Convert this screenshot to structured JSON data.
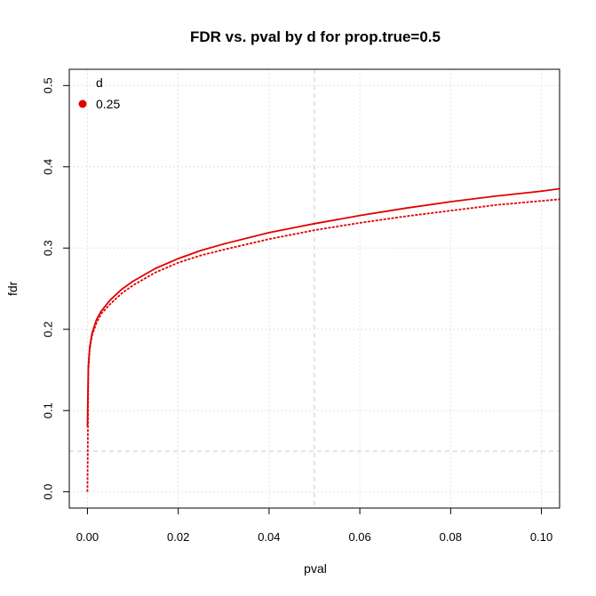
{
  "chart_data": {
    "type": "line",
    "title": "FDR vs. pval by d for prop.true=0.5",
    "xlabel": "pval",
    "ylabel": "fdr",
    "xlim": [
      -0.004,
      0.104
    ],
    "ylim": [
      -0.02,
      0.52
    ],
    "x_ticks": [
      0.0,
      0.02,
      0.04,
      0.06,
      0.08,
      0.1
    ],
    "x_tick_labels": [
      "0.00",
      "0.02",
      "0.04",
      "0.06",
      "0.08",
      "0.10"
    ],
    "y_ticks": [
      0.0,
      0.1,
      0.2,
      0.3,
      0.4,
      0.5
    ],
    "y_tick_labels": [
      "0.0",
      "0.1",
      "0.2",
      "0.3",
      "0.4",
      "0.5"
    ],
    "grid": true,
    "legend": {
      "title": "d",
      "placement": "top-left",
      "entries": [
        {
          "label": "0.25",
          "color": "#e00000"
        }
      ]
    },
    "reference_lines": {
      "vertical_x": 0.05,
      "horizontal_y": 0.05,
      "color": "#d3d3d3"
    },
    "series": [
      {
        "color": "#e00000",
        "style": "solid",
        "x": [
          0.0,
          0.0002,
          0.0005,
          0.001,
          0.002,
          0.003,
          0.005,
          0.0075,
          0.01,
          0.015,
          0.02,
          0.025,
          0.03,
          0.04,
          0.05,
          0.06,
          0.07,
          0.08,
          0.09,
          0.1,
          0.104
        ],
        "y": [
          0.08,
          0.155,
          0.178,
          0.195,
          0.212,
          0.222,
          0.236,
          0.249,
          0.259,
          0.275,
          0.287,
          0.297,
          0.305,
          0.319,
          0.33,
          0.34,
          0.349,
          0.357,
          0.364,
          0.37,
          0.373
        ]
      },
      {
        "color": "#e00000",
        "style": "dashed",
        "x": [
          0.0,
          0.0002,
          0.0005,
          0.001,
          0.002,
          0.003,
          0.005,
          0.0075,
          0.01,
          0.015,
          0.02,
          0.025,
          0.03,
          0.04,
          0.05,
          0.06,
          0.07,
          0.08,
          0.09,
          0.1,
          0.104
        ],
        "y": [
          0.0,
          0.15,
          0.175,
          0.192,
          0.208,
          0.219,
          0.231,
          0.244,
          0.254,
          0.27,
          0.282,
          0.291,
          0.298,
          0.311,
          0.322,
          0.331,
          0.339,
          0.346,
          0.353,
          0.358,
          0.36
        ]
      }
    ]
  }
}
